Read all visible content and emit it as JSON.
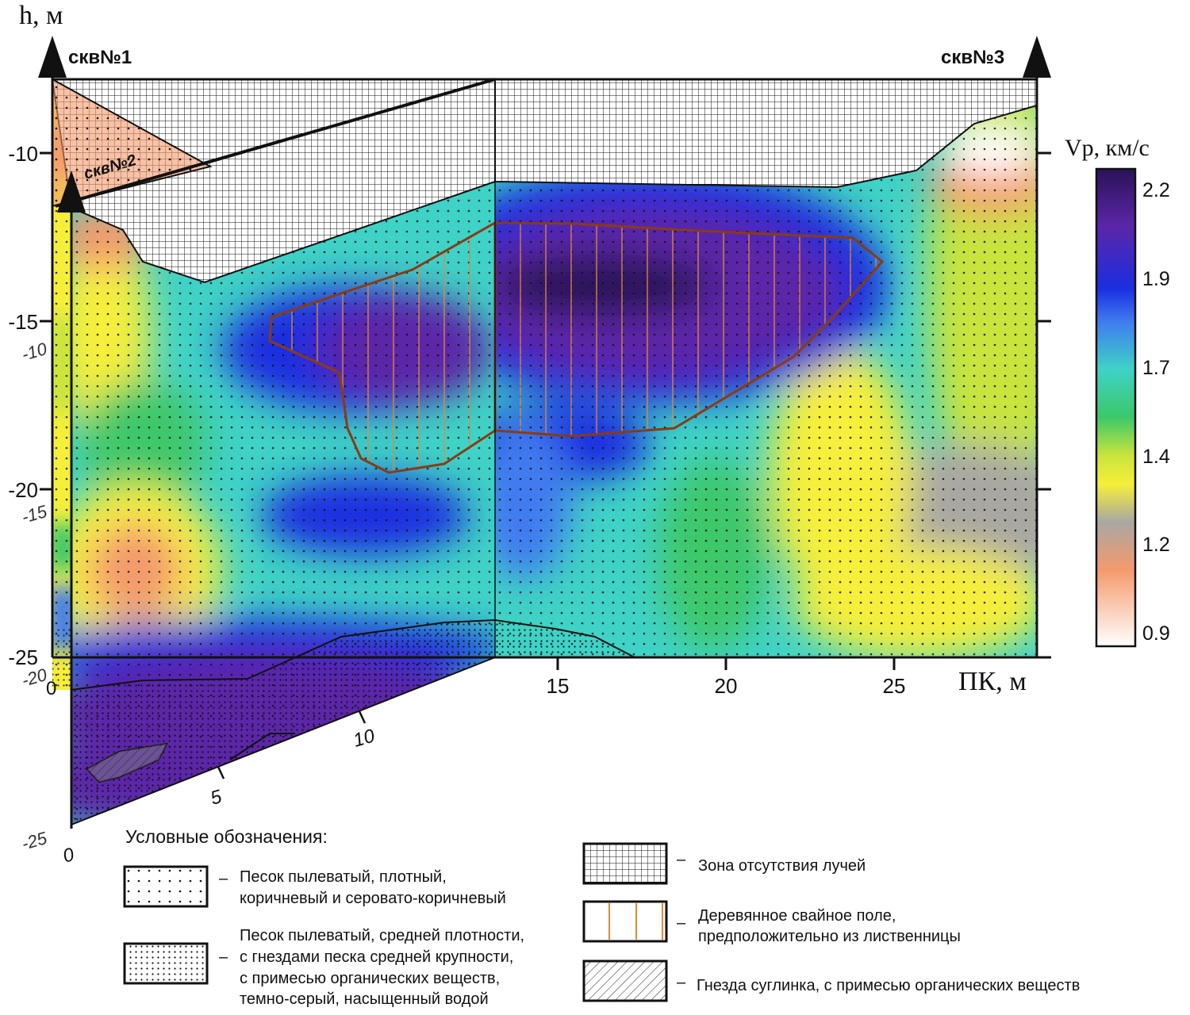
{
  "axes": {
    "vertical_title": "h, м",
    "main_depth_ticks": [
      "-10",
      "-15",
      "-20",
      "-25"
    ],
    "main_pk_ticks": [
      "15",
      "20",
      "25"
    ],
    "pk_title": "ПК, м",
    "side_depth_ticks": [
      "-10",
      "-15",
      "-20",
      "-25"
    ],
    "side_pk_ticks": [
      "0",
      "5",
      "10"
    ],
    "main_zero": "0"
  },
  "wells": {
    "well1": "скв№1",
    "well2": "скв№2",
    "well3": "скв№3"
  },
  "colorbar": {
    "title": "Vp, км/с",
    "ticks": [
      "2.2",
      "1.9",
      "1.7",
      "1.4",
      "1.2",
      "0.9"
    ],
    "stops": [
      "#2a1258",
      "#5b26a8",
      "#1b2ee0",
      "#3f7cf0",
      "#3fd2c6",
      "#3cc86a",
      "#c8e43c",
      "#f6ef3a",
      "#a9a7a2",
      "#f49a6c",
      "#ffffff"
    ]
  },
  "legend": {
    "title": "Условные обозначения:",
    "items": [
      {
        "dash": "–",
        "lines": [
          "Песок пылеватый, плотный,",
          "коричневый и серовато-коричневый"
        ]
      },
      {
        "dash": "–",
        "lines": [
          "Песок пылеватый, средней плотности,",
          "с гнездами песка средней крупности,",
          "с примесью органических веществ,",
          "темно-серый, насыщенный водой"
        ]
      },
      {
        "dash": "–",
        "lines": [
          "Зона отсутствия лучей"
        ]
      },
      {
        "dash": "–",
        "lines": [
          "Деревянное свайное поле,",
          "предположительно из лиственницы"
        ]
      },
      {
        "dash": "–",
        "lines": [
          "Гнезда суглинка, с примесью органических веществ"
        ]
      }
    ]
  }
}
